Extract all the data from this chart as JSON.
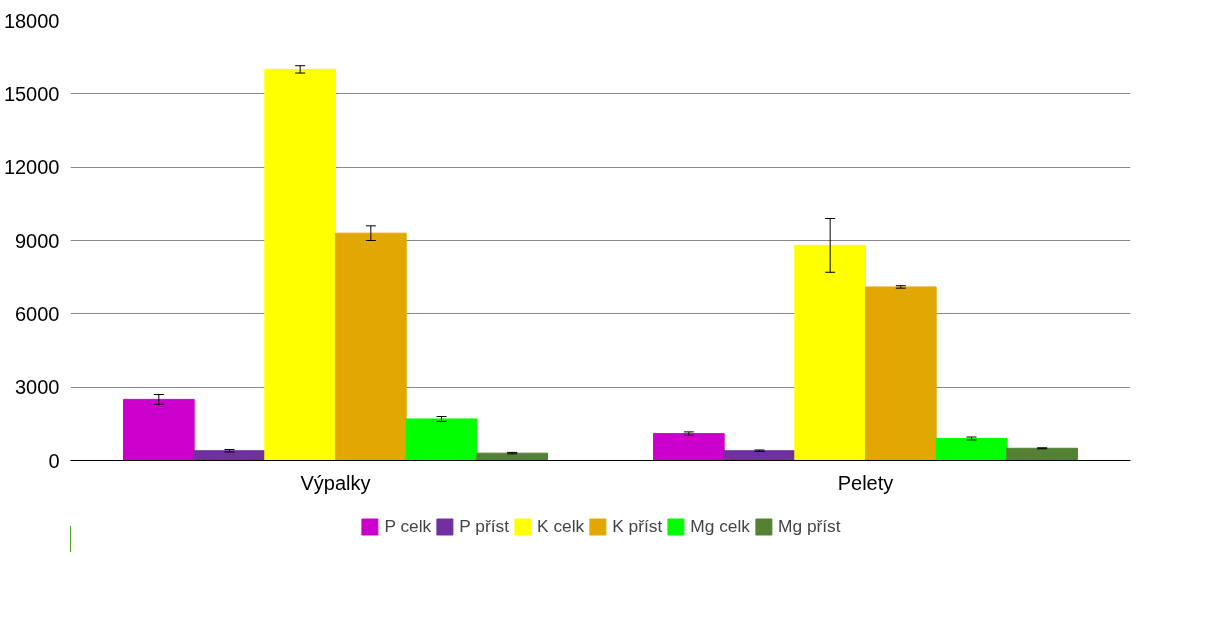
{
  "chart_data": {
    "type": "bar",
    "categories": [
      "Výpalky",
      "Pelety"
    ],
    "ylim": [
      0,
      18000
    ],
    "yticks": [
      0,
      3000,
      6000,
      9000,
      12000,
      15000,
      18000
    ],
    "grid": "y",
    "legend": "bottom",
    "series": [
      {
        "name": "P celk",
        "color": "#cc00cc",
        "values": [
          2500,
          1100
        ],
        "errors": [
          200,
          70
        ]
      },
      {
        "name": "P příst",
        "color": "#7030a0",
        "values": [
          400,
          400
        ],
        "errors": [
          50,
          30
        ]
      },
      {
        "name": "K celk",
        "color": "#ffff00",
        "values": [
          16000,
          8800
        ],
        "errors": [
          150,
          1100
        ]
      },
      {
        "name": "K příst",
        "color": "#e0a800",
        "values": [
          9300,
          7100
        ],
        "errors": [
          300,
          50
        ]
      },
      {
        "name": "Mg celk",
        "color": "#00ff00",
        "values": [
          1700,
          900
        ],
        "errors": [
          100,
          60
        ]
      },
      {
        "name": "Mg příst",
        "color": "#548235",
        "values": [
          300,
          500
        ],
        "errors": [
          30,
          20
        ]
      }
    ]
  }
}
